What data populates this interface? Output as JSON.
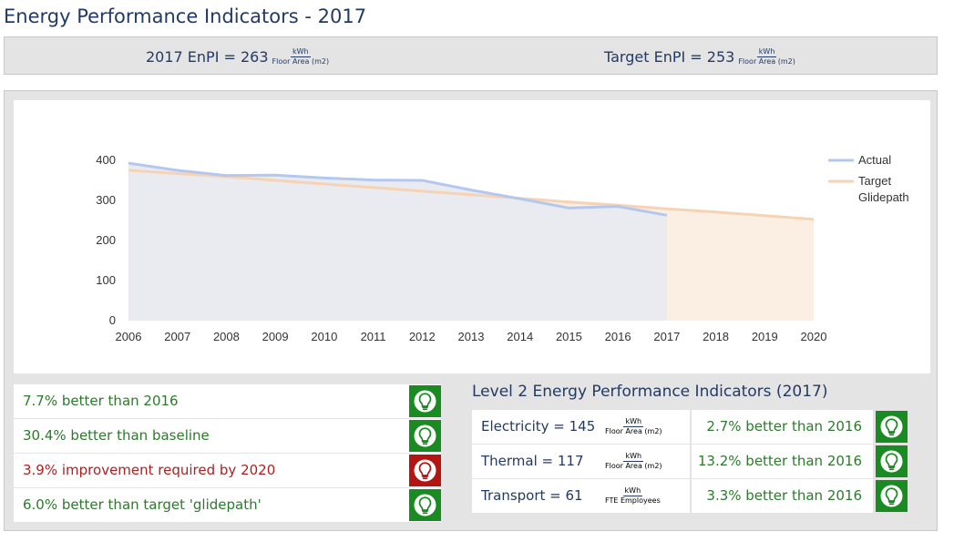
{
  "page_title": "Energy Performance Indicators - 2017",
  "enpi": {
    "current": {
      "label": "2017 EnPI = 263",
      "unit_num": "kWh",
      "unit_den": "Floor Area (m2)"
    },
    "target": {
      "label": "Target EnPI = 253",
      "unit_num": "kWh",
      "unit_den": "Floor Area (m2)"
    }
  },
  "chart_data": {
    "type": "area",
    "x": [
      2006,
      2007,
      2008,
      2009,
      2010,
      2011,
      2012,
      2013,
      2014,
      2015,
      2016,
      2017,
      2018,
      2019,
      2020
    ],
    "series": [
      {
        "name": "Actual",
        "x": [
          2006,
          2007,
          2008,
          2009,
          2010,
          2011,
          2012,
          2013,
          2014,
          2015,
          2016,
          2017
        ],
        "values": [
          393,
          375,
          362,
          363,
          356,
          351,
          350,
          326,
          304,
          281,
          285,
          263
        ],
        "color": "#b4c8ee",
        "fill": "#e8eaf0"
      },
      {
        "name": "Target Glidepath",
        "legend_lines": [
          "Target",
          "Glidepath"
        ],
        "x": [
          2006,
          2007,
          2008,
          2009,
          2010,
          2011,
          2012,
          2013,
          2014,
          2015,
          2016,
          2017,
          2018,
          2019,
          2020
        ],
        "values": [
          375,
          367,
          359,
          350,
          341,
          332,
          323,
          314,
          305,
          296,
          288,
          279,
          271,
          262,
          253
        ],
        "color": "#f6d3b4",
        "fill": "#fbeee2"
      }
    ],
    "y_ticks": [
      0,
      100,
      200,
      300,
      400
    ],
    "ylim": [
      0,
      400
    ],
    "xlim": [
      2006,
      2020
    ],
    "grid": false,
    "legend": "right"
  },
  "status_items": [
    {
      "text": "7.7% better than 2016",
      "state": "good"
    },
    {
      "text": "30.4% better than baseline",
      "state": "good"
    },
    {
      "text": "3.9% improvement required by 2020",
      "state": "bad"
    },
    {
      "text": "6.0% better than target 'glidepath'",
      "state": "good"
    }
  ],
  "level2": {
    "title": "Level 2 Energy Performance Indicators (2017)",
    "rows": [
      {
        "name": "Electricity = 145",
        "unit_num": "kWh",
        "unit_den": "Floor Area (m2)",
        "status": "2.7% better than 2016",
        "state": "good"
      },
      {
        "name": "Thermal = 117",
        "unit_num": "kWh",
        "unit_den": "Floor Area (m2)",
        "status": "13.2% better than 2016",
        "state": "good"
      },
      {
        "name": "Transport = 61",
        "unit_num": "kWh",
        "unit_den": "FTE Employees",
        "status": "3.3% better than 2016",
        "state": "good"
      }
    ]
  },
  "colors": {
    "good_bg": "#1a8a22",
    "bad_bg": "#b31515",
    "good_text": "#2d7a2d",
    "bad_text": "#b01e1e",
    "title_text": "#233a64"
  },
  "icons": {
    "status": "lightbulb-icon"
  }
}
